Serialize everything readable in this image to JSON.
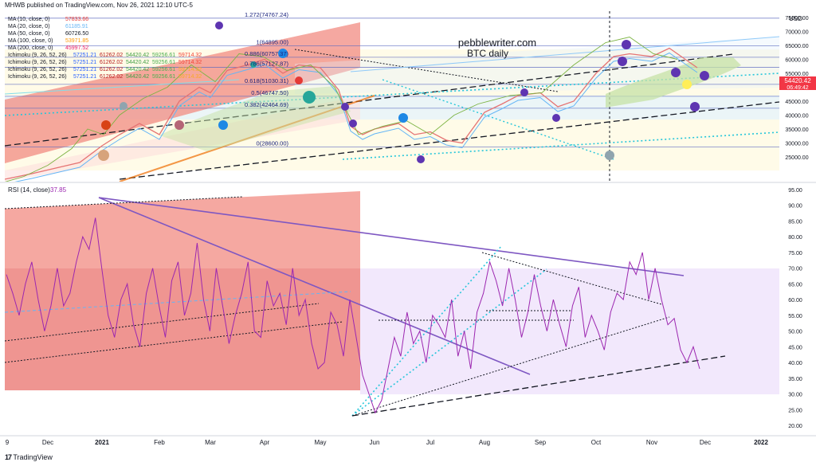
{
  "header": "MHWB published on TradingView.com, Nov 26, 2021 12:10 UTC-5",
  "footer": "TradingView",
  "watermark": {
    "line1": "pebblewriter.com",
    "line2": "BTC daily"
  },
  "price_pane": {
    "indicators": [
      {
        "label": "MA (10, close, 0)",
        "values": [
          "57833.66"
        ],
        "colors": [
          "#e53935"
        ]
      },
      {
        "label": "MA (20, close, 0)",
        "values": [
          "61185.91"
        ],
        "colors": [
          "#64b5f6"
        ]
      },
      {
        "label": "MA (50, close, 0)",
        "values": [
          "60726.50"
        ],
        "colors": [
          "#131722"
        ]
      },
      {
        "label": "MA (100, close, 0)",
        "values": [
          "53971.85"
        ],
        "colors": [
          "#ff9800"
        ]
      },
      {
        "label": "MA (200, close, 0)",
        "values": [
          "45997.52"
        ],
        "colors": [
          "#e91e63"
        ]
      },
      {
        "label": "Ichimoku (9, 26, 52, 26)",
        "values": [
          "57251.21",
          "61262.02",
          "54420.42",
          "59256.61",
          "59714.32"
        ],
        "colors": [
          "#2962ff",
          "#b71c1c",
          "#43a047",
          "#4caf50",
          "#f44336"
        ]
      },
      {
        "label": "Ichimoku (9, 26, 52, 26)",
        "values": [
          "57251.21",
          "61262.02",
          "54420.42",
          "59256.61",
          "59714.32"
        ],
        "colors": [
          "#2962ff",
          "#b71c1c",
          "#43a047",
          "#4caf50",
          "#f44336"
        ]
      },
      {
        "label": "Ichimoku (9, 26, 52, 26)",
        "values": [
          "57251.21",
          "61262.02",
          "54420.42",
          "59256.61",
          "59714.32"
        ],
        "colors": [
          "#2962ff",
          "#b71c1c",
          "#43a047",
          "#4caf50",
          "#f9a825"
        ]
      },
      {
        "label": "Ichimoku (9, 26, 52, 26)",
        "values": [
          "57251.21",
          "61262.02",
          "54420.42",
          "59256.61",
          "59714.32"
        ],
        "colors": [
          "#2962ff",
          "#b71c1c",
          "#43a047",
          "#4caf50",
          "#f9a825"
        ]
      }
    ],
    "fib_labels": [
      {
        "text": "1.272(74767.24)",
        "y": 74767
      },
      {
        "text": "1(64895.00)",
        "y": 64895
      },
      {
        "text": "0.886(60757.37)",
        "y": 60757
      },
      {
        "text": "0.786(57127.87)",
        "y": 57128
      },
      {
        "text": "0.618(51030.31)",
        "y": 51030
      },
      {
        "text": "0.5(46747.50)",
        "y": 46748
      },
      {
        "text": "0.382(42464.69)",
        "y": 42465
      },
      {
        "text": "0(28600.00)",
        "y": 28600
      }
    ],
    "axis_ticks": [
      "75000.00",
      "70000.00",
      "65000.00",
      "60000.00",
      "55000.00",
      "50000.00",
      "45000.00",
      "40000.00",
      "35000.00",
      "30000.00",
      "25000.00"
    ],
    "axis_unit": "USD",
    "price_tag": {
      "value": "54420.42",
      "countdown": "06:49:42",
      "color": "#f23645"
    }
  },
  "rsi_pane": {
    "label": "RSI (14, close)",
    "value": "37.85",
    "axis_ticks": [
      "95.00",
      "90.00",
      "85.00",
      "80.00",
      "75.00",
      "70.00",
      "65.00",
      "60.00",
      "55.00",
      "50.00",
      "45.00",
      "40.00",
      "35.00",
      "30.00",
      "25.00",
      "20.00"
    ]
  },
  "time_axis": [
    "9",
    "Dec",
    "2021",
    "Feb",
    "Mar",
    "Apr",
    "May",
    "Jun",
    "Jul",
    "Aug",
    "Sep",
    "Oct",
    "Nov",
    "Dec",
    "2022"
  ],
  "chart_data": [
    {
      "type": "line",
      "title": "BTC daily",
      "x": [
        "Nov",
        "Dec",
        "2021",
        "Feb",
        "Mar",
        "Apr",
        "May",
        "Jun",
        "Jul",
        "Aug",
        "Sep",
        "Oct",
        "Nov",
        "Dec",
        "2022"
      ],
      "ylim": [
        22000,
        77000
      ],
      "y_scale": "linear",
      "series": [
        {
          "values": [
            null,
            19000,
            29000,
            33000,
            48000,
            58000,
            57000,
            36000,
            34000,
            39000,
            48000,
            44000,
            61000,
            57000,
            null
          ]
        }
      ],
      "grid": true
    },
    {
      "type": "line",
      "title": "RSI (14, close)",
      "x": [
        "Nov",
        "Dec",
        "2021",
        "Feb",
        "Mar",
        "Apr",
        "May",
        "Jun",
        "Jul",
        "Aug",
        "Sep",
        "Oct",
        "Nov",
        "Dec",
        "2022"
      ],
      "ylim": [
        18,
        96
      ],
      "series": [
        {
          "values": [
            68,
            72,
            88,
            54,
            72,
            60,
            52,
            38,
            52,
            42,
            73,
            55,
            68,
            45,
            null
          ]
        }
      ],
      "grid": false
    }
  ]
}
